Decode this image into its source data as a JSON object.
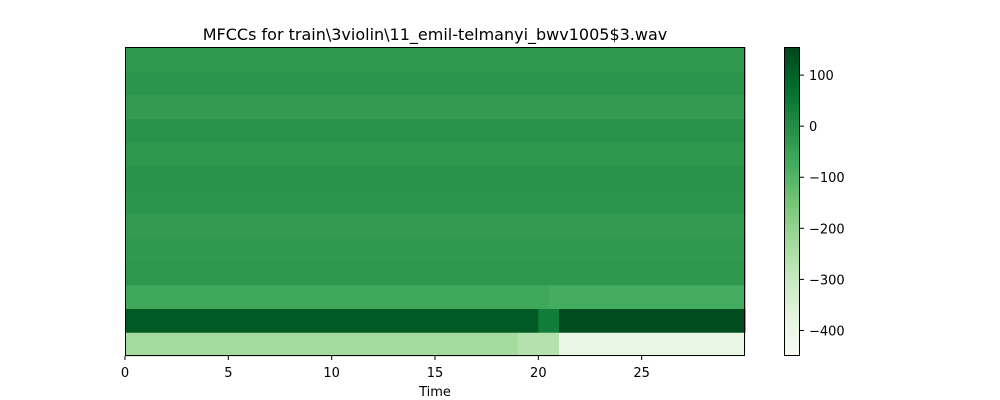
{
  "chart_data": {
    "type": "heatmap",
    "title": "MFCCs for train\\3violin\\11_emil-telmanyi_bwv1005$3.wav",
    "xlabel": "Time",
    "ylabel": "",
    "xlim": [
      0,
      30
    ],
    "x_ticks": [
      0,
      5,
      10,
      15,
      20,
      25
    ],
    "x_tick_labels": [
      "0",
      "5",
      "10",
      "15",
      "20",
      "25"
    ],
    "n_coefficients": 13,
    "colormap": "Greens",
    "colorbar": {
      "range": [
        -450,
        155
      ],
      "ticks": [
        100,
        0,
        -100,
        -200,
        -300,
        -400
      ],
      "tick_labels": [
        "100",
        "0",
        "−100",
        "−200",
        "−300",
        "−400"
      ]
    },
    "rows_bottom_to_top": [
      {
        "coef": 0,
        "segments": [
          {
            "x0": 0,
            "x1": 19,
            "value": -230
          },
          {
            "x0": 19,
            "x1": 21,
            "value": -260
          },
          {
            "x0": 21,
            "x1": 30,
            "value": -390
          }
        ]
      },
      {
        "coef": 1,
        "segments": [
          {
            "x0": 0,
            "x1": 20,
            "value": 115
          },
          {
            "x0": 20,
            "x1": 21,
            "value": 40
          },
          {
            "x0": 21,
            "x1": 30,
            "value": 140
          }
        ]
      },
      {
        "coef": 2,
        "segments": [
          {
            "x0": 0,
            "x1": 20.5,
            "value": -65
          },
          {
            "x0": 20.5,
            "x1": 30,
            "value": -75
          }
        ]
      },
      {
        "coef": 3,
        "segments": [
          {
            "x0": 0,
            "x1": 30,
            "value": -25
          }
        ]
      },
      {
        "coef": 4,
        "segments": [
          {
            "x0": 0,
            "x1": 30,
            "value": -30
          }
        ]
      },
      {
        "coef": 5,
        "segments": [
          {
            "x0": 0,
            "x1": 30,
            "value": -35
          }
        ]
      },
      {
        "coef": 6,
        "segments": [
          {
            "x0": 0,
            "x1": 30,
            "value": -20
          }
        ]
      },
      {
        "coef": 7,
        "segments": [
          {
            "x0": 0,
            "x1": 30,
            "value": -15
          }
        ]
      },
      {
        "coef": 8,
        "segments": [
          {
            "x0": 0,
            "x1": 30,
            "value": -25
          }
        ]
      },
      {
        "coef": 9,
        "segments": [
          {
            "x0": 0,
            "x1": 30,
            "value": -15
          }
        ]
      },
      {
        "coef": 10,
        "segments": [
          {
            "x0": 0,
            "x1": 30,
            "value": -35
          }
        ]
      },
      {
        "coef": 11,
        "segments": [
          {
            "x0": 0,
            "x1": 30,
            "value": -20
          }
        ]
      },
      {
        "coef": 12,
        "segments": [
          {
            "x0": 0,
            "x1": 30,
            "value": -30
          }
        ]
      }
    ]
  }
}
